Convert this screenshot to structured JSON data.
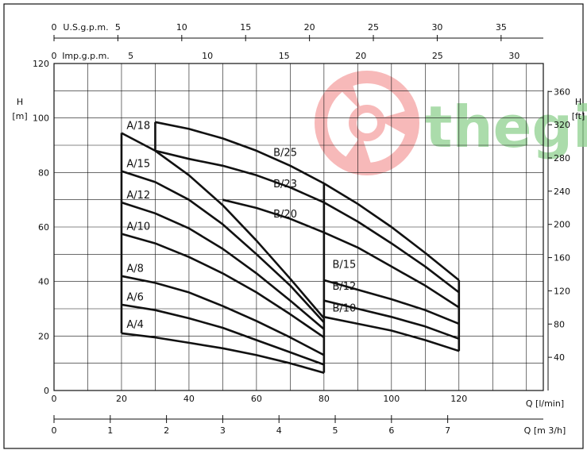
{
  "chart_data": {
    "type": "line",
    "x_unit_label": "Q [l/min]",
    "x2_unit_label": "Q [m 3/h]",
    "y_left_label_top": "H",
    "y_left_label_unit": "[m]",
    "y_right_label_top": "H",
    "y_right_label_unit": "[ft]",
    "top_axis1_label": "U.S.g.p.m.",
    "top_axis2_label": "Imp.g.p.m.",
    "xlim": [
      0,
      145
    ],
    "ylim": [
      0,
      120
    ],
    "x_ticks": [
      "0",
      "20",
      "40",
      "60",
      "80",
      "100",
      "120"
    ],
    "y_ticks": [
      "0",
      "20",
      "40",
      "60",
      "80",
      "100",
      "120"
    ],
    "m3h_ticks": [
      "0",
      "1",
      "2",
      "3",
      "4",
      "5",
      "6",
      "7"
    ],
    "usgpm_ticks": [
      "0",
      "5",
      "10",
      "15",
      "20",
      "25",
      "30",
      "35"
    ],
    "impgpm_ticks": [
      "0",
      "5",
      "10",
      "15",
      "20",
      "25",
      "30"
    ],
    "ft_ticks": [
      "40",
      "80",
      "120",
      "160",
      "200",
      "240",
      "280",
      "320",
      "360"
    ],
    "series": [
      {
        "name": "A/4",
        "x": [
          20,
          30,
          40,
          50,
          60,
          70,
          80
        ],
        "y": [
          21,
          19.5,
          17.5,
          15.5,
          13,
          10,
          6.5
        ]
      },
      {
        "name": "A/6",
        "x": [
          20,
          30,
          40,
          50,
          60,
          70,
          80
        ],
        "y": [
          31.5,
          29.5,
          26.5,
          23,
          18.5,
          14,
          9.5
        ]
      },
      {
        "name": "A/8",
        "x": [
          20,
          30,
          40,
          50,
          60,
          70,
          80
        ],
        "y": [
          42,
          39.5,
          36,
          31,
          25.5,
          19.5,
          13
        ]
      },
      {
        "name": "A/10",
        "x": [
          20,
          30,
          40,
          50,
          60,
          70,
          80
        ],
        "y": [
          57.5,
          54,
          49,
          43,
          36,
          28,
          19.5
        ]
      },
      {
        "name": "A/12",
        "x": [
          20,
          30,
          40,
          50,
          60,
          70,
          80
        ],
        "y": [
          69,
          65,
          59.5,
          52,
          43,
          33,
          22.5
        ]
      },
      {
        "name": "A/15",
        "x": [
          20,
          30,
          40,
          50,
          60,
          70,
          80
        ],
        "y": [
          80.5,
          76.5,
          70,
          61,
          50,
          38.5,
          25
        ]
      },
      {
        "name": "A/18",
        "x": [
          20,
          30,
          40,
          50,
          60,
          70,
          80
        ],
        "y": [
          94.5,
          88,
          79,
          68,
          55,
          41,
          26.5
        ]
      },
      {
        "name": "B/10",
        "x": [
          80,
          90,
          100,
          110,
          120
        ],
        "y": [
          27,
          24.5,
          22,
          18.5,
          14.5
        ]
      },
      {
        "name": "B/12",
        "x": [
          80,
          90,
          100,
          110,
          120
        ],
        "y": [
          33,
          30,
          27,
          23.5,
          19
        ]
      },
      {
        "name": "B/15",
        "x": [
          80,
          90,
          100,
          110,
          120
        ],
        "y": [
          40.5,
          37,
          33.5,
          29.5,
          24.5
        ]
      },
      {
        "name": "B/20",
        "x": [
          50,
          60,
          70,
          80,
          90,
          100,
          110,
          120
        ],
        "y": [
          70,
          67,
          63,
          58,
          52.5,
          45.5,
          38.5,
          30.5
        ]
      },
      {
        "name": "B/23",
        "x": [
          30,
          40,
          50,
          60,
          70,
          80,
          90,
          100,
          110,
          120
        ],
        "y": [
          88,
          85,
          82.5,
          79,
          74.5,
          69,
          62,
          54,
          45.5,
          36
        ]
      },
      {
        "name": "B/25",
        "x": [
          30,
          40,
          50,
          60,
          70,
          80,
          90,
          100,
          110,
          120
        ],
        "y": [
          98.5,
          96,
          92.5,
          88,
          82.5,
          76,
          68.5,
          60,
          50.5,
          40.5
        ]
      }
    ],
    "labels": [
      {
        "text": "A/18",
        "x": 21.5,
        "y": 96
      },
      {
        "text": "A/15",
        "x": 21.5,
        "y": 82
      },
      {
        "text": "A/12",
        "x": 21.5,
        "y": 70.5
      },
      {
        "text": "A/10",
        "x": 21.5,
        "y": 59
      },
      {
        "text": "A/8",
        "x": 21.5,
        "y": 43.5
      },
      {
        "text": "A/6",
        "x": 21.5,
        "y": 33
      },
      {
        "text": "A/4",
        "x": 21.5,
        "y": 23
      },
      {
        "text": "B/25",
        "x": 65,
        "y": 86
      },
      {
        "text": "B/23",
        "x": 65,
        "y": 74.5
      },
      {
        "text": "B/20",
        "x": 65,
        "y": 63.5
      },
      {
        "text": "B/15",
        "x": 82.5,
        "y": 45
      },
      {
        "text": "B/12",
        "x": 82.5,
        "y": 37
      },
      {
        "text": "B/10",
        "x": 82.5,
        "y": 29
      }
    ]
  },
  "colors": {
    "curve": "#111111",
    "grid": "#111111",
    "watermark_logo": "#f28c8c",
    "watermark_text": "#8fd18f"
  },
  "watermark": {
    "text": "thegio"
  }
}
